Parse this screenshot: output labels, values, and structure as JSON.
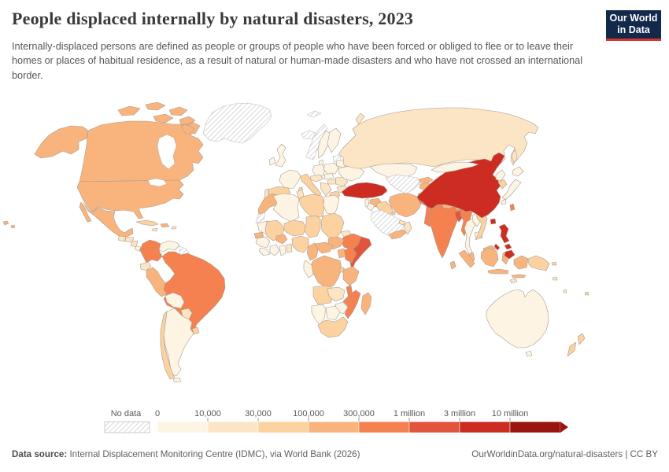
{
  "header": {
    "title": "People displaced internally by natural disasters, 2023",
    "subtitle": "Internally-displaced persons are defined as people or groups of people who have been forced or obliged to flee or to leave their homes or places of habitual residence, as a result of natural or human-made disasters and who have not crossed an international border.",
    "logo": {
      "line1": "Our World",
      "line2": "in Data"
    }
  },
  "footer": {
    "source_label": "Data source:",
    "source_text": " Internal Displacement Monitoring Centre (IDMC), via World Bank (2026)",
    "right_text": "OurWorldinData.org/natural-disasters | CC BY"
  },
  "legend": {
    "no_data_label": "No data",
    "ticks": [
      "0",
      "10,000",
      "30,000",
      "100,000",
      "300,000",
      "1 million",
      "3 million",
      "10 million"
    ]
  },
  "chart_data": {
    "type": "choropleth",
    "title": "People displaced internally by natural disasters, 2023",
    "year": 2023,
    "unit": "people displaced internally by natural disasters",
    "legend_position": "bottom",
    "scale": "log-binned",
    "bins": [
      {
        "id": "0-10k",
        "label": "0 – 10,000",
        "color": "#FEF4E3"
      },
      {
        "id": "10k-30k",
        "label": "10,000 – 30,000",
        "color": "#FCE5C4"
      },
      {
        "id": "30k-100k",
        "label": "30,000 – 100,000",
        "color": "#FBD2A0"
      },
      {
        "id": "100k-300k",
        "label": "100,000 – 300,000",
        "color": "#F9B47E"
      },
      {
        "id": "300k-1m",
        "label": "300,000 – 1 million",
        "color": "#F4814F"
      },
      {
        "id": "1m-3m",
        "label": "1 million – 3 million",
        "color": "#E2543C"
      },
      {
        "id": "3m-10m",
        "label": "3 million – 10 million",
        "color": "#CC2C22"
      },
      {
        "id": "10m",
        "label": "10 million+",
        "color": "#9B1410"
      }
    ],
    "no_data": {
      "label": "No data",
      "pattern": "diagonal-hatch",
      "hatch_color": "#cccccc"
    },
    "countries": {
      "greenland": "no-data",
      "canada": "100k-300k",
      "united-states": "100k-300k",
      "mexico": "100k-300k",
      "guatemala": "10k-30k",
      "honduras": "10k-30k",
      "nicaragua": "10k-30k",
      "costa-rica": "0-10k",
      "panama": "10k-30k",
      "cuba": "30k-100k",
      "hispaniola": "100k-300k",
      "jamaica": "10k-30k",
      "puerto-rico": "10k-30k",
      "colombia": "300k-1m",
      "venezuela": "0-10k",
      "guyana-suriname": "no-data",
      "ecuador": "10k-30k",
      "peru": "100k-300k",
      "brazil": "300k-1m",
      "bolivia": "0-10k",
      "paraguay": "10k-30k",
      "uruguay": "30k-100k",
      "argentina": "0-10k",
      "chile": "30k-100k",
      "iceland": "no-data",
      "norway": "no-data",
      "svalbard": "no-data",
      "sweden": "0-10k",
      "finland": "0-10k",
      "baltic-states": "no-data",
      "denmark": "0-10k",
      "united-kingdom": "0-10k",
      "ireland": "0-10k",
      "france": "0-10k",
      "spain": "30k-100k",
      "portugal": "10k-30k",
      "germany": "0-10k",
      "poland": "0-10k",
      "czechia-slovakia": "0-10k",
      "austria-switzerland": "10k-30k",
      "hungary": "10k-30k",
      "balkans": "10k-30k",
      "romania": "10k-30k",
      "bulgaria": "10k-30k",
      "greece": "30k-100k",
      "italy": "30k-100k",
      "ukraine": "0-10k",
      "belarus": "0-10k",
      "russia": "10k-30k",
      "kazakhstan": "0-10k",
      "turkmenistan-uzbekistan": "no-data",
      "kyrgyzstan": "100k-300k",
      "tajikistan": "100k-300k",
      "georgia": "100k-300k",
      "armenia": "30k-100k",
      "azerbaijan": "30k-100k",
      "turkey": "3m-10m",
      "syria": "100k-300k",
      "lebanon-israel": "0-10k",
      "jordan": "0-10k",
      "iraq": "30k-100k",
      "saudi-arabia": "no-data",
      "kuwait": "30k-100k",
      "yemen": "100k-300k",
      "oman": "10k-30k",
      "united-arab-emirates": "10k-30k",
      "iran": "100k-300k",
      "afghanistan": "300k-1m",
      "pakistan": "300k-1m",
      "india": "300k-1m",
      "nepal": "100k-300k",
      "bhutan": "100k-300k",
      "bangladesh": "1m-3m",
      "sri-lanka": "100k-300k",
      "myanmar": "300k-1m",
      "thailand": "0-10k",
      "laos": "0-10k",
      "cambodia": "0-10k",
      "vietnam": "30k-100k",
      "malaysia": "100k-300k",
      "indonesia": "100k-300k",
      "philippines": "3m-10m",
      "china": "3m-10m",
      "taiwan": "300k-1m",
      "mongolia": "0-10k",
      "north-korea": "0-10k",
      "south-korea": "30k-100k",
      "japan": "0-10k",
      "morocco": "100k-300k",
      "western-sahara": "no-data",
      "algeria": "0-10k",
      "tunisia": "10k-30k",
      "libya": "30k-100k",
      "egypt": "0-10k",
      "mauritania": "0-10k",
      "senegal": "100k-300k",
      "mali": "30k-100k",
      "niger": "30k-100k",
      "chad": "30k-100k",
      "sudan": "30k-100k",
      "eritrea": "10k-30k",
      "ethiopia": "300k-1m",
      "somalia": "1m-3m",
      "kenya": "300k-1m",
      "uganda": "100k-300k",
      "south-sudan": "100k-300k",
      "central-african-republic": "100k-300k",
      "cameroon": "100k-300k",
      "nigeria": "30k-100k",
      "burkina-faso": "100k-300k",
      "ghana": "0-10k",
      "ivory-coast": "0-10k",
      "togo-benin": "10k-30k",
      "guinea": "0-10k",
      "sierra-leone-liberia": "0-10k",
      "dr-congo": "100k-300k",
      "congo-gabon": "0-10k",
      "rwanda-burundi": "30k-100k",
      "tanzania": "100k-300k",
      "angola": "30k-100k",
      "zambia": "10k-30k",
      "malawi": "300k-1m",
      "mozambique": "300k-1m",
      "zimbabwe": "0-10k",
      "botswana": "0-10k",
      "namibia": "0-10k",
      "south-africa": "30k-100k",
      "madagascar": "100k-300k",
      "australia": "0-10k",
      "new-zealand": "30k-100k",
      "papua-new-guinea": "30k-100k",
      "fiji": "30k-100k",
      "vanuatu": "10k-30k",
      "solomon-islands": "10k-30k",
      "timor-leste": "10k-30k"
    }
  }
}
